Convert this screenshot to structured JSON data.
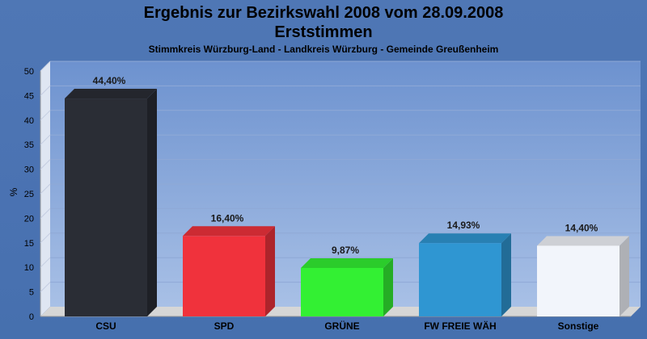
{
  "title_line1": "Ergebnis zur Bezirkswahl 2008 vom 28.09.2008",
  "title_line2": "Erststimmen",
  "subtitle": "Stimmkreis Würzburg-Land - Landkreis Würzburg - Gemeinde Greußenheim",
  "chart_data": {
    "type": "bar",
    "categories": [
      "CSU",
      "SPD",
      "GRÜNE",
      "FW FREIE WÄH",
      "Sonstige"
    ],
    "values": [
      44.4,
      16.4,
      9.87,
      14.93,
      14.4
    ],
    "value_labels": [
      "44,40%",
      "16,40%",
      "9,87%",
      "14,93%",
      "14,40%"
    ],
    "colors": [
      "#2a2d35",
      "#f0323c",
      "#33f033",
      "#2f96d2",
      "#f2f5fb"
    ],
    "ylabel": "%",
    "ylim": [
      0,
      50
    ],
    "yticks": [
      0,
      5,
      10,
      15,
      20,
      25,
      30,
      35,
      40,
      45,
      50
    ],
    "grid": true
  }
}
